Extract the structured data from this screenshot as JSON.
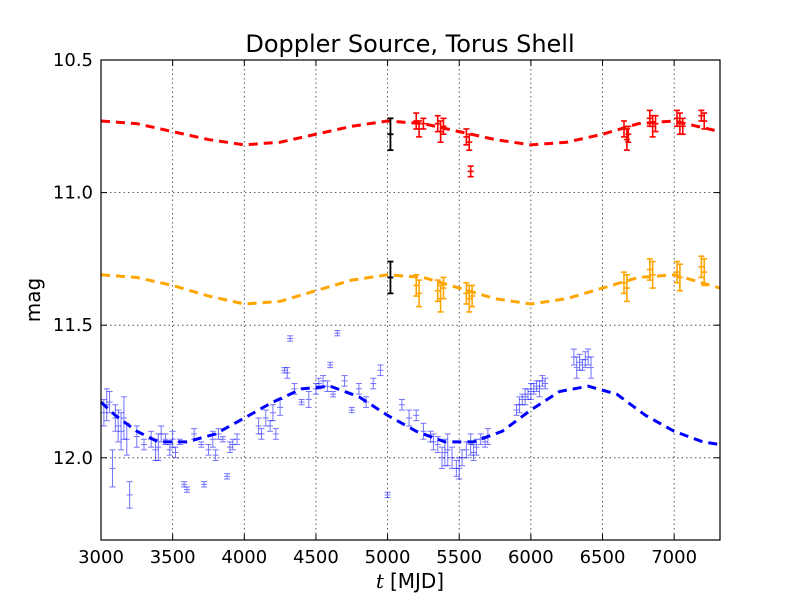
{
  "chart_data": {
    "type": "scatter",
    "title": "Doppler Source,  Torus Shell",
    "xlabel_var": "t",
    "xlabel_unit": "[MJD]",
    "ylabel": "mag",
    "xlim": [
      3000,
      7320
    ],
    "ylim": [
      12.31,
      10.5
    ],
    "y_inverted": true,
    "grid": true,
    "x_ticks": [
      3000,
      3500,
      4000,
      4500,
      5000,
      5500,
      6000,
      6500,
      7000
    ],
    "x_tick_labels": [
      "3000",
      "3500",
      "4000",
      "4500",
      "5000",
      "5500",
      "6000",
      "6500",
      "7000"
    ],
    "y_ticks": [
      10.5,
      11.0,
      11.5,
      12.0
    ],
    "y_tick_labels": [
      "10.5",
      "11.0",
      "11.5",
      "12.0"
    ],
    "model_curves": [
      {
        "color": "#ff0000",
        "style": "dashed",
        "x": [
          3000,
          3250,
          3500,
          3750,
          4000,
          4250,
          4500,
          4750,
          5000,
          5250,
          5500,
          5750,
          6000,
          6250,
          6500,
          6750,
          7000,
          7320
        ],
        "y": [
          10.73,
          10.74,
          10.77,
          10.8,
          10.82,
          10.81,
          10.78,
          10.75,
          10.73,
          10.74,
          10.77,
          10.8,
          10.82,
          10.81,
          10.78,
          10.74,
          10.73,
          10.77
        ]
      },
      {
        "color": "#ffa500",
        "style": "dashed",
        "x": [
          3000,
          3250,
          3500,
          3750,
          4000,
          4250,
          4500,
          4750,
          5000,
          5250,
          5500,
          5750,
          6000,
          6250,
          6500,
          6750,
          7000,
          7320
        ],
        "y": [
          11.31,
          11.32,
          11.35,
          11.39,
          11.42,
          11.41,
          11.37,
          11.33,
          11.31,
          11.32,
          11.36,
          11.4,
          11.42,
          11.4,
          11.36,
          11.32,
          11.31,
          11.36
        ]
      },
      {
        "color": "#0000ff",
        "style": "dashed",
        "x": [
          3000,
          3100,
          3250,
          3400,
          3600,
          3800,
          4000,
          4200,
          4400,
          4600,
          4800,
          5000,
          5200,
          5400,
          5600,
          5800,
          6000,
          6200,
          6400,
          6600,
          6800,
          7000,
          7200,
          7320
        ],
        "y": [
          11.79,
          11.84,
          11.9,
          11.94,
          11.94,
          11.91,
          11.85,
          11.79,
          11.74,
          11.73,
          11.77,
          11.84,
          11.9,
          11.94,
          11.94,
          11.9,
          11.82,
          11.75,
          11.73,
          11.76,
          11.84,
          11.9,
          11.94,
          11.95
        ]
      }
    ],
    "reference_points": [
      {
        "color": "#000000",
        "x": [
          5020,
          5020
        ],
        "y": [
          10.78,
          11.32
        ],
        "err": [
          0.06,
          0.06
        ]
      }
    ],
    "series": [
      {
        "color": "#ff0000",
        "x": [
          5200,
          5220,
          5250,
          5350,
          5370,
          5390,
          5550,
          5570,
          5580,
          6650,
          6670,
          6680,
          6830,
          6850,
          6870,
          7020,
          7040,
          7060,
          7190,
          7210
        ],
        "y": [
          10.73,
          10.76,
          10.74,
          10.74,
          10.77,
          10.75,
          10.79,
          10.81,
          10.92,
          10.76,
          10.8,
          10.78,
          10.72,
          10.75,
          10.74,
          10.72,
          10.74,
          10.75,
          10.71,
          10.73
        ],
        "err": [
          0.03,
          0.03,
          0.02,
          0.03,
          0.04,
          0.03,
          0.03,
          0.03,
          0.02,
          0.03,
          0.04,
          0.03,
          0.03,
          0.04,
          0.03,
          0.03,
          0.04,
          0.03,
          0.02,
          0.03
        ]
      },
      {
        "color": "#ffa500",
        "x": [
          5200,
          5220,
          5350,
          5370,
          5390,
          5550,
          5570,
          5590,
          6650,
          6670,
          6830,
          6850,
          7020,
          7040,
          7190,
          7210
        ],
        "y": [
          11.35,
          11.38,
          11.37,
          11.4,
          11.36,
          11.38,
          11.4,
          11.39,
          11.34,
          11.36,
          11.29,
          11.31,
          11.3,
          11.32,
          11.28,
          11.3
        ],
        "err": [
          0.04,
          0.05,
          0.04,
          0.05,
          0.04,
          0.04,
          0.05,
          0.04,
          0.04,
          0.05,
          0.04,
          0.05,
          0.04,
          0.05,
          0.04,
          0.05
        ]
      },
      {
        "color": "#0000ff",
        "x": [
          3020,
          3040,
          3060,
          3080,
          3100,
          3120,
          3140,
          3160,
          3180,
          3200,
          3250,
          3300,
          3350,
          3380,
          3400,
          3420,
          3450,
          3480,
          3500,
          3520,
          3550,
          3580,
          3600,
          3650,
          3700,
          3720,
          3750,
          3780,
          3800,
          3820,
          3850,
          3880,
          3900,
          3920,
          3950,
          4100,
          4120,
          4150,
          4180,
          4200,
          4220,
          4250,
          4280,
          4300,
          4320,
          4350,
          4400,
          4450,
          4500,
          4520,
          4550,
          4580,
          4600,
          4620,
          4650,
          4700,
          4750,
          4800,
          4850,
          4900,
          4950,
          5000,
          5100,
          5150,
          5200,
          5250,
          5300,
          5320,
          5350,
          5380,
          5400,
          5420,
          5450,
          5480,
          5500,
          5520,
          5550,
          5580,
          5600,
          5620,
          5650,
          5680,
          5700,
          5900,
          5920,
          5940,
          5960,
          5980,
          6000,
          6020,
          6040,
          6060,
          6080,
          6100,
          6300,
          6320,
          6340,
          6360,
          6380,
          6400,
          6420
        ],
        "y": [
          11.83,
          11.8,
          11.79,
          12.04,
          11.85,
          11.88,
          11.9,
          11.85,
          11.93,
          12.14,
          11.92,
          11.95,
          11.93,
          11.97,
          11.96,
          11.91,
          11.93,
          11.97,
          11.93,
          11.98,
          11.94,
          12.1,
          12.12,
          11.91,
          11.95,
          12.1,
          11.97,
          11.93,
          11.99,
          11.91,
          11.93,
          12.07,
          11.96,
          11.95,
          11.93,
          11.88,
          11.91,
          11.85,
          11.88,
          11.83,
          11.91,
          11.81,
          11.67,
          11.68,
          11.55,
          11.74,
          11.79,
          11.78,
          11.74,
          11.72,
          11.71,
          11.73,
          11.65,
          11.76,
          11.53,
          11.71,
          11.82,
          11.74,
          11.79,
          11.72,
          11.67,
          12.14,
          11.8,
          11.85,
          11.84,
          11.9,
          11.92,
          11.94,
          11.95,
          12.0,
          11.98,
          11.97,
          12.0,
          12.04,
          12.04,
          12.0,
          11.97,
          11.95,
          11.98,
          11.96,
          11.93,
          11.94,
          11.92,
          11.82,
          11.8,
          11.78,
          11.77,
          11.76,
          11.75,
          11.74,
          11.73,
          11.74,
          11.71,
          11.72,
          11.62,
          11.66,
          11.64,
          11.65,
          11.63,
          11.62,
          11.66
        ],
        "err": [
          0.05,
          0.06,
          0.04,
          0.07,
          0.05,
          0.06,
          0.07,
          0.08,
          0.06,
          0.05,
          0.04,
          0.02,
          0.03,
          0.04,
          0.05,
          0.03,
          0.02,
          0.02,
          0.03,
          0.02,
          0.01,
          0.01,
          0.01,
          0.02,
          0.01,
          0.01,
          0.02,
          0.03,
          0.02,
          0.02,
          0.01,
          0.01,
          0.02,
          0.02,
          0.02,
          0.03,
          0.02,
          0.03,
          0.02,
          0.03,
          0.02,
          0.03,
          0.01,
          0.02,
          0.01,
          0.02,
          0.01,
          0.03,
          0.02,
          0.02,
          0.02,
          0.02,
          0.01,
          0.01,
          0.01,
          0.02,
          0.01,
          0.02,
          0.02,
          0.02,
          0.02,
          0.01,
          0.02,
          0.03,
          0.02,
          0.03,
          0.02,
          0.03,
          0.03,
          0.04,
          0.05,
          0.06,
          0.04,
          0.03,
          0.04,
          0.03,
          0.03,
          0.04,
          0.03,
          0.03,
          0.02,
          0.02,
          0.03,
          0.02,
          0.03,
          0.02,
          0.03,
          0.02,
          0.03,
          0.02,
          0.02,
          0.03,
          0.02,
          0.02,
          0.03,
          0.04,
          0.03,
          0.02,
          0.03,
          0.03,
          0.04
        ]
      }
    ]
  }
}
